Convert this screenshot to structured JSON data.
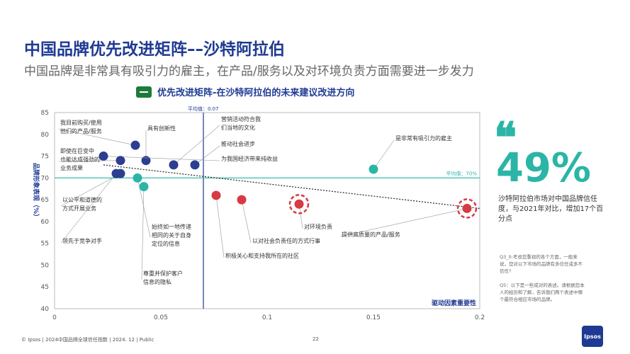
{
  "header": {
    "title": "中国品牌优先改进矩阵––沙特阿拉伯",
    "subtitle": "中国品牌是非常具有吸引力的雇主，在产品/服务以及对环境负责方面需要进一步发力"
  },
  "chart_heading": "优先改进矩阵-在沙特阿拉伯的未来建议改进方向",
  "callout": {
    "value": "49%",
    "text": "沙特阿拉伯市场对中国品牌信任度，与2021年对比，增加17个百分点"
  },
  "notes": [
    "Q3_0:考虑您重视的各个方面，一般来说，您对以下市场的品牌有多信任或多不信任?",
    "Q5：以下是一些成对的表述。请根据您本人的经历和了解，告诉我们两个表述中哪个最符合相应市场的品牌。"
  ],
  "footer": {
    "source": "© Ipsos | 2024中国品牌全球信任指数 | 2024. 12 | Public",
    "page": "22",
    "logo": "Ipsos"
  },
  "colors": {
    "navy": "#2c3e8f",
    "teal": "#2bb5a6",
    "red": "#d63a45"
  },
  "chart_data": {
    "type": "scatter",
    "title": "优先改进矩阵-在沙特阿拉伯的未来建议改进方向",
    "xlabel": "驱动因素重要性",
    "ylabel": "品牌形象表现（%）",
    "xlim": [
      0,
      0.2
    ],
    "ylim": [
      40,
      85
    ],
    "xticks": [
      "0",
      "0.05",
      "0.1",
      "0.15",
      "0.2"
    ],
    "yticks": [
      "40",
      "45",
      "50",
      "55",
      "60",
      "65",
      "70",
      "75",
      "80",
      "85"
    ],
    "avg_x": {
      "value": 0.07,
      "label": "平均值：0.07"
    },
    "avg_y": {
      "value": 70,
      "label": "平均值：70%"
    },
    "trendline": {
      "from": [
        0.023,
        73
      ],
      "to": [
        0.2,
        63
      ]
    },
    "points": [
      {
        "x": 0.038,
        "y": 77.5,
        "color": "navy",
        "label": "我目前购买/使用他们的产品/服务"
      },
      {
        "x": 0.043,
        "y": 74,
        "color": "navy",
        "label": "具有创新性"
      },
      {
        "x": 0.056,
        "y": 73,
        "color": "navy",
        "label": "营销活动符合我们当地的文化"
      },
      {
        "x": 0.066,
        "y": 73,
        "color": "navy",
        "label": "推动社会进步"
      },
      {
        "x": 0.023,
        "y": 75,
        "color": "navy",
        "label": "为我国经济带来纯收益"
      },
      {
        "x": 0.031,
        "y": 74,
        "color": "navy",
        "label": "即使在巨变中也能达成强劲的业务成果"
      },
      {
        "x": 0.031,
        "y": 71,
        "color": "navy",
        "label": "以公平和道德的方式开展业务"
      },
      {
        "x": 0.029,
        "y": 71,
        "color": "navy",
        "label": "领先于竞争对手"
      },
      {
        "x": 0.039,
        "y": 70,
        "color": "teal",
        "label": "始终如一地传递相同的关于自身定位的信息"
      },
      {
        "x": 0.042,
        "y": 68,
        "color": "teal",
        "label": "尊重并保护客户信息的隐私"
      },
      {
        "x": 0.15,
        "y": 72,
        "color": "teal",
        "label": "是非常有吸引力的雇主"
      },
      {
        "x": 0.076,
        "y": 66,
        "color": "red",
        "label": "积极关心和支持我所在的社区"
      },
      {
        "x": 0.088,
        "y": 65,
        "color": "red",
        "label": "以对社会负责任的方式行事"
      },
      {
        "x": 0.115,
        "y": 64,
        "color": "red",
        "highlight": true,
        "label": "对环境负责"
      },
      {
        "x": 0.194,
        "y": 63,
        "color": "red",
        "highlight": true,
        "label": "提供高质量的产品/服务"
      }
    ]
  }
}
